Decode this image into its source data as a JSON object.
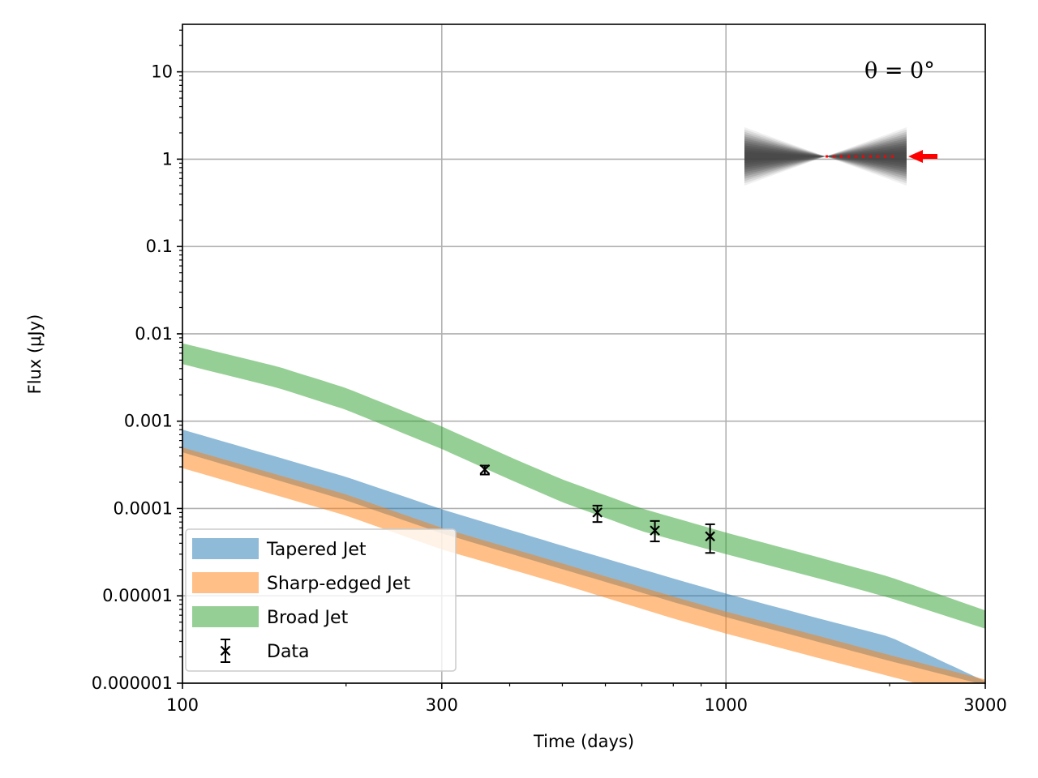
{
  "chart_data": {
    "type": "area",
    "xlabel": "Time (days)",
    "ylabel": "Flux (μJy)",
    "xscale": "log",
    "yscale": "log",
    "xlim": [
      100,
      3000
    ],
    "ylim": [
      1e-06,
      35
    ],
    "xticks": [
      {
        "value": 100,
        "label": "100"
      },
      {
        "value": 300,
        "label": "300"
      },
      {
        "value": 1000,
        "label": "1000"
      },
      {
        "value": 3000,
        "label": "3000"
      }
    ],
    "yticks": [
      {
        "value": 10,
        "label": "10"
      },
      {
        "value": 1,
        "label": "1"
      },
      {
        "value": 0.1,
        "label": "0.1"
      },
      {
        "value": 0.01,
        "label": "0.01"
      },
      {
        "value": 0.001,
        "label": "0.001"
      },
      {
        "value": 0.0001,
        "label": "0.0001"
      },
      {
        "value": 1e-05,
        "label": "0.00001"
      },
      {
        "value": 1e-06,
        "label": "0.000001"
      }
    ],
    "grid": true,
    "legend_position": "lower-left",
    "annotation": "θ = 0°",
    "series": [
      {
        "name": "Tapered Jet",
        "color": "#1f77b4",
        "x": [
          100,
          200,
          300,
          500,
          800,
          1000,
          1500,
          2000,
          3000
        ],
        "lower": [
          0.00044,
          0.000124,
          5.2e-05,
          2.02e-05,
          8.5e-06,
          5.7e-06,
          2.9e-06,
          1.8e-06,
          9.5e-07
        ],
        "upper": [
          0.0008,
          0.00023,
          9.8e-05,
          3.75e-05,
          1.58e-05,
          1.06e-05,
          5.4e-06,
          3.4e-06,
          1.05e-06
        ]
      },
      {
        "name": "Sharp-edged Jet",
        "color": "#ff7f0e",
        "x": [
          100,
          200,
          300,
          500,
          800,
          1000,
          1500,
          2000,
          3000
        ],
        "lower": [
          0.00029,
          8.3e-05,
          3.4e-05,
          1.35e-05,
          5.5e-06,
          3.7e-06,
          1.9e-06,
          1.2e-06,
          6.2e-07
        ],
        "upper": [
          0.0005,
          0.000145,
          6e-05,
          2.35e-05,
          9.8e-06,
          6.6e-06,
          3.4e-06,
          2.1e-06,
          1.1e-06
        ]
      },
      {
        "name": "Broad Jet",
        "color": "#2ca02c",
        "x": [
          100,
          150,
          200,
          300,
          400,
          500,
          700,
          1000,
          1500,
          2000,
          3000
        ],
        "lower": [
          0.0045,
          0.0024,
          0.00135,
          0.00048,
          0.000215,
          0.000118,
          5.5e-05,
          3e-05,
          1.55e-05,
          9.5e-06,
          4.2e-06
        ],
        "upper": [
          0.0078,
          0.0042,
          0.0024,
          0.00087,
          0.00039,
          0.000215,
          0.0001,
          5.3e-05,
          2.7e-05,
          1.65e-05,
          6.8e-06
        ]
      }
    ],
    "data_points": {
      "name": "Data",
      "marker": "x",
      "color": "#000000",
      "points": [
        {
          "x": 360,
          "y": 0.00028,
          "yerr_low": 0.000245,
          "yerr_high": 0.00031
        },
        {
          "x": 580,
          "y": 9e-05,
          "yerr_low": 7e-05,
          "yerr_high": 0.000108
        },
        {
          "x": 740,
          "y": 5.6e-05,
          "yerr_low": 4.2e-05,
          "yerr_high": 7.2e-05
        },
        {
          "x": 935,
          "y": 4.8e-05,
          "yerr_low": 3.1e-05,
          "yerr_high": 6.6e-05
        }
      ]
    }
  }
}
